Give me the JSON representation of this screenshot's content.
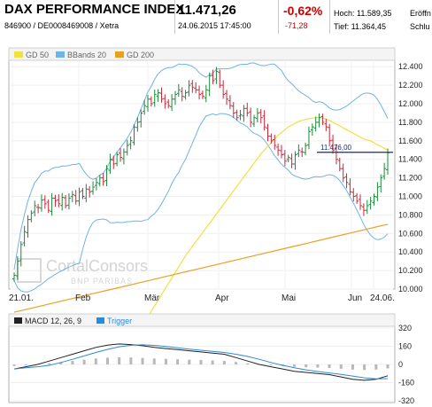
{
  "header": {
    "title": "DAX PERFORMANCE INDEX",
    "subtitle": "846900 / DE0008469008 / Xetra",
    "price": "11.471,26",
    "datetime": "24.06.2015 17:45:00",
    "change_pct": "-0,62%",
    "change_abs": "-71,28",
    "high_label": "Hoch: 11.589,35",
    "low_label": "Tief: 11.364,45",
    "open_label": "Eröffn",
    "close_label": "Schlu",
    "change_color": "#cc0000"
  },
  "legend": {
    "gd50": "GD 50",
    "bbands": "BBands 20",
    "gd200": "GD 200",
    "gd50_color": "#f0e040",
    "bbands_color": "#6fb3e8",
    "gd200_color": "#e8a020"
  },
  "watermark": {
    "line1": "CortalConsors",
    "line2": "BNP PARIBAS"
  },
  "price_marker": "11.476,00",
  "macd_legend": {
    "label": "MACD 12, 26, 9",
    "trigger": "Trigger"
  },
  "chart_data": [
    {
      "type": "candlestick",
      "title": "DAX PERFORMANCE INDEX",
      "y_ticks": [
        "12.400",
        "12.200",
        "12.000",
        "11.800",
        "11.600",
        "11.400",
        "11.200",
        "11.000",
        "10.800",
        "10.600",
        "10.400",
        "10.200",
        "10.000"
      ],
      "ylim": [
        10000,
        12450
      ],
      "x_ticks": [
        "21.01.",
        "Feb",
        "Mär",
        "Apr",
        "Mai",
        "Jun",
        "24.06."
      ],
      "close": [
        10150,
        10300,
        10480,
        10620,
        10750,
        10820,
        10900,
        10880,
        10960,
        10920,
        10850,
        10980,
        10950,
        10920,
        10990,
        10900,
        10980,
        11020,
        10950,
        11050,
        11000,
        11080,
        11050,
        11100,
        11150,
        11200,
        11160,
        11300,
        11400,
        11350,
        11450,
        11420,
        11480,
        11550,
        11600,
        11750,
        11800,
        11900,
        11980,
        12050,
        12000,
        12100,
        12120,
        12050,
        12000,
        11980,
        12050,
        12100,
        12150,
        12080,
        12120,
        12200,
        12180,
        12150,
        12100,
        12080,
        12150,
        12300,
        12250,
        12350,
        12200,
        12100,
        12050,
        11980,
        11900,
        11850,
        11880,
        11950,
        11900,
        11800,
        11850,
        11900,
        11850,
        11750,
        11650,
        11600,
        11550,
        11500,
        11450,
        11380,
        11420,
        11350,
        11450,
        11500,
        11480,
        11550,
        11700,
        11750,
        11800,
        11850,
        11800,
        11750,
        11600,
        11500,
        11400,
        11300,
        11200,
        11150,
        11050,
        11000,
        10950,
        10900,
        10850,
        10900,
        10950,
        11000,
        11100,
        11200,
        11300,
        11471
      ],
      "sma50": [
        9700,
        9760,
        9820,
        9880,
        9940,
        10000,
        10060,
        10120,
        10180,
        10240,
        10300,
        10360,
        10410,
        10460,
        10510,
        10560,
        10610,
        10660,
        10710,
        10760,
        10810,
        10860,
        10910,
        10960,
        11010,
        11060,
        11110,
        11160,
        11210,
        11260,
        11310,
        11360,
        11410,
        11460,
        11500,
        11540,
        11580,
        11620,
        11660,
        11690,
        11720,
        11750,
        11770,
        11790,
        11810,
        11820,
        11830,
        11840,
        11845,
        11850,
        11850,
        11845,
        11835,
        11820,
        11800,
        11780,
        11760,
        11740,
        11720,
        11700,
        11680,
        11660,
        11640,
        11620,
        11610,
        11600,
        11580,
        11560,
        11540,
        11520,
        11500
      ],
      "sma200": [
        9750,
        9800,
        9850,
        9900,
        9950,
        10000,
        10050,
        10100,
        10150,
        10200,
        10250,
        10300,
        10350,
        10400,
        10450,
        10500,
        10550,
        10600,
        10650,
        10700
      ],
      "macd": [
        -40,
        -20,
        0,
        30,
        60,
        90,
        120,
        150,
        170,
        180,
        175,
        165,
        150,
        140,
        130,
        120,
        110,
        100,
        90,
        60,
        30,
        0,
        -20,
        -40,
        -60,
        -70,
        -80,
        -90,
        -110,
        -130,
        -140,
        -130,
        -100
      ],
      "macd_y_ticks": [
        "320",
        "160",
        "0",
        "-160",
        "-320"
      ]
    }
  ]
}
